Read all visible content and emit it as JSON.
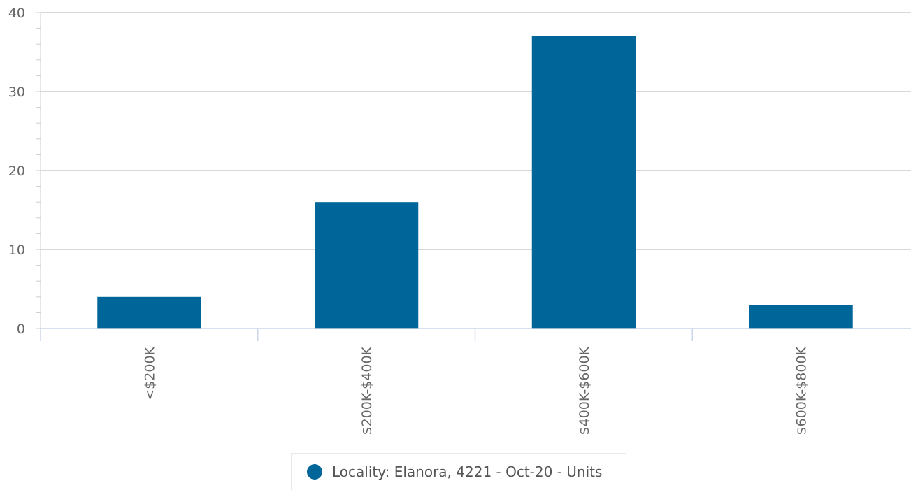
{
  "chart_data": {
    "type": "bar",
    "categories": [
      "<$200K",
      "$200K-$400K",
      "$400K-$600K",
      "$600K-$800K"
    ],
    "series": [
      {
        "name": "Locality: Elanora, 4221 - Oct-20 - Units",
        "values": [
          4,
          16,
          37,
          3
        ],
        "color": "#006699"
      }
    ],
    "ylim": [
      0,
      40
    ],
    "yticks": [
      "0",
      "10",
      "20",
      "30",
      "40"
    ],
    "grid": true,
    "legend": "bottom"
  }
}
